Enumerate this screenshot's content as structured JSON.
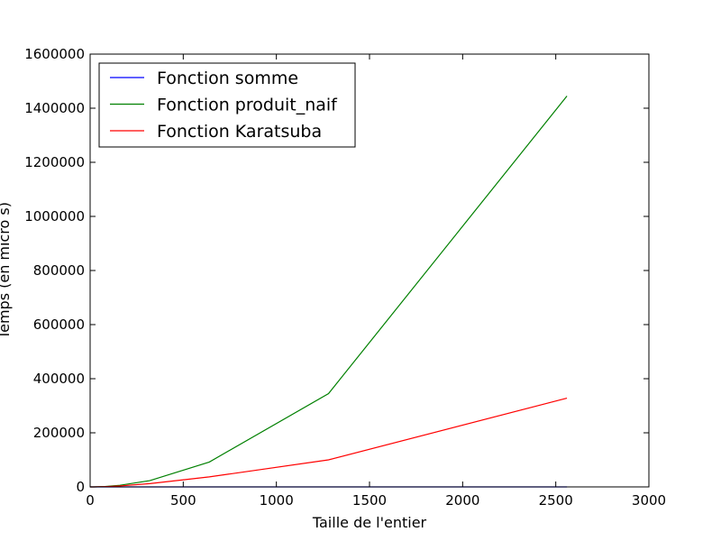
{
  "chart_data": {
    "type": "line",
    "xlabel": "Taille de l'entier",
    "ylabel": "Temps (en micro s)",
    "xlim": [
      0,
      3000
    ],
    "ylim": [
      0,
      1600000
    ],
    "x_ticks": [
      0,
      500,
      1000,
      1500,
      2000,
      2500,
      3000
    ],
    "y_ticks": [
      0,
      200000,
      400000,
      600000,
      800000,
      1000000,
      1200000,
      1400000,
      1600000
    ],
    "grid": false,
    "legend_position": "top-left",
    "series": [
      {
        "name": "Fonction somme",
        "color": "#0000ff",
        "x": [
          0,
          10,
          20,
          40,
          80,
          160,
          320,
          640,
          1280,
          2560
        ],
        "y": [
          0,
          0,
          0,
          0,
          0,
          0,
          0,
          0,
          0,
          0
        ]
      },
      {
        "name": "Fonction produit_naif",
        "color": "#008000",
        "x": [
          0,
          10,
          20,
          40,
          80,
          160,
          320,
          640,
          1280,
          2560
        ],
        "y": [
          0,
          0,
          100,
          400,
          1500,
          6000,
          23000,
          92000,
          345000,
          1445000
        ]
      },
      {
        "name": "Fonction Karatsuba",
        "color": "#ff0000",
        "x": [
          0,
          10,
          20,
          40,
          80,
          160,
          320,
          640,
          1280,
          2560
        ],
        "y": [
          0,
          0,
          100,
          300,
          1000,
          3500,
          12000,
          37000,
          100000,
          328000
        ]
      }
    ]
  }
}
